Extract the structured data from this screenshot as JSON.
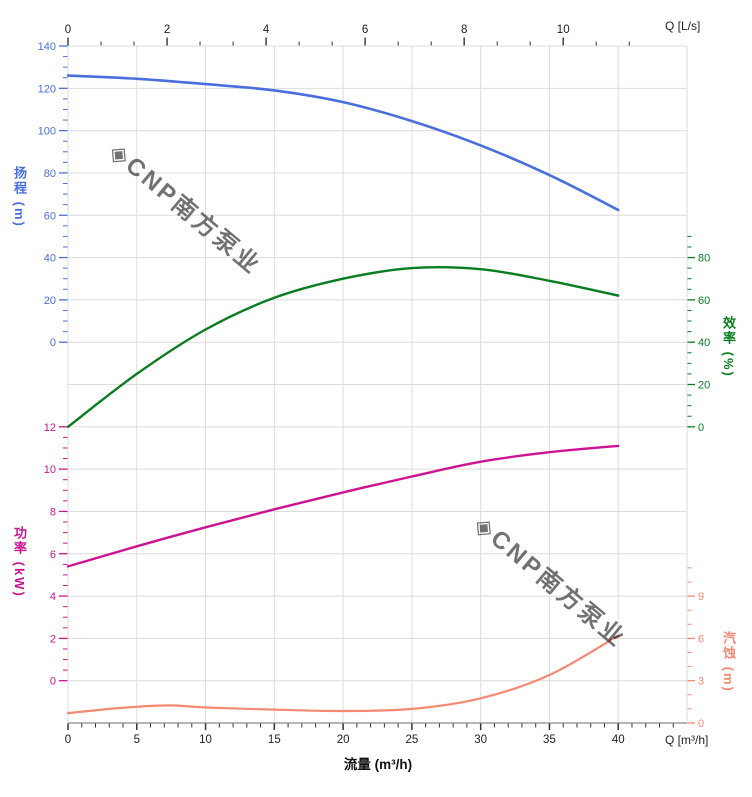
{
  "watermark": {
    "text": "◈CNP南方泵业",
    "color": "#c6cdd8"
  },
  "labels": {
    "top_axis_unit": "Q [L/s]",
    "bottom_axis_unit": "Q [m³/h]",
    "bottom_axis_title": "流量 (m³/h)",
    "head_axis_title": "扬程 (m)",
    "power_axis_title": "功率 (kW)",
    "eff_axis_title": "效率 (%)",
    "npsh_axis_title": "汽蚀 (m)"
  },
  "colors": {
    "head": "#4a6fdc",
    "efficiency": "#0a7c21",
    "power": "#cc1493",
    "npsh": "#f58a74",
    "grid": "#dcdcdc",
    "axis_line": "#8a8a8a",
    "dark_tick": "#333333",
    "dark_text": "#222222"
  },
  "chart_data": {
    "type": "line",
    "title": "",
    "grid": true,
    "legend": "none",
    "x_bottom": {
      "title": "流量 (m³/h)",
      "unit": "Q [m³/h]",
      "min": 0,
      "max": 45,
      "major_ticks": [
        0,
        5,
        10,
        15,
        20,
        25,
        30,
        35,
        40
      ],
      "minor_step": 1
    },
    "x_top": {
      "unit": "Q [L/s]",
      "min": 0,
      "max": 12.5,
      "major_ticks": [
        0,
        2,
        4,
        6,
        8,
        10
      ],
      "minor_step": 0.6667
    },
    "y_axes": {
      "head": {
        "title": "扬程 (m)",
        "color": "#4a6fdc",
        "min": 0,
        "max": 140,
        "major_ticks": [
          140,
          120,
          100,
          80,
          60,
          40,
          20,
          0
        ],
        "minor_step": 5,
        "minor_max": 140,
        "side": "left"
      },
      "power": {
        "title": "功率 (kW)",
        "color": "#cc1493",
        "min": 0,
        "max": 12,
        "major_ticks": [
          12,
          10,
          8,
          6,
          4,
          2,
          0
        ],
        "minor_step": 0.5,
        "minor_max": 12,
        "side": "left"
      },
      "eff": {
        "title": "效率 (%)",
        "color": "#0a7c21",
        "min": 0,
        "max": 80,
        "major_ticks": [
          80,
          60,
          40,
          20,
          0
        ],
        "minor_step": 5,
        "minor_max": 90,
        "side": "right"
      },
      "npsh": {
        "title": "汽蚀 (m)",
        "color": "#f58a74",
        "min": 0,
        "max": 9,
        "major_ticks": [
          9,
          6,
          3,
          0
        ],
        "minor_step": 1,
        "minor_max": 11,
        "side": "right"
      }
    },
    "series": [
      {
        "id": "head-curve",
        "name": "扬程",
        "axis": "head",
        "color": "#4a6fdc",
        "width": 2.6,
        "x": [
          0,
          5,
          10,
          15,
          20,
          25,
          30,
          35,
          40
        ],
        "y": [
          126,
          124.5,
          122,
          119,
          113.5,
          104.5,
          93,
          79,
          62.5
        ]
      },
      {
        "id": "efficiency-curve",
        "name": "效率",
        "axis": "eff",
        "color": "#0a7c21",
        "width": 2.4,
        "x": [
          0,
          5,
          10,
          15,
          20,
          25,
          30,
          35,
          40
        ],
        "y": [
          0,
          25,
          46,
          61,
          70,
          75,
          74.5,
          69,
          62
        ]
      },
      {
        "id": "power-curve",
        "name": "功率",
        "axis": "power",
        "color": "#cc1493",
        "width": 2.4,
        "x": [
          0,
          5,
          10,
          15,
          20,
          25,
          30,
          35,
          40
        ],
        "y": [
          5.4,
          6.35,
          7.25,
          8.1,
          8.9,
          9.65,
          10.35,
          10.8,
          11.1
        ]
      },
      {
        "id": "npsh-curve",
        "name": "汽蚀",
        "axis": "npsh",
        "color": "#f58a74",
        "width": 2.2,
        "x": [
          0,
          2.5,
          5,
          7.5,
          10,
          15,
          20,
          25,
          30,
          35,
          40
        ],
        "y": [
          0.7,
          0.95,
          1.15,
          1.25,
          1.1,
          0.95,
          0.85,
          1.0,
          1.75,
          3.4,
          6.2
        ]
      }
    ]
  }
}
